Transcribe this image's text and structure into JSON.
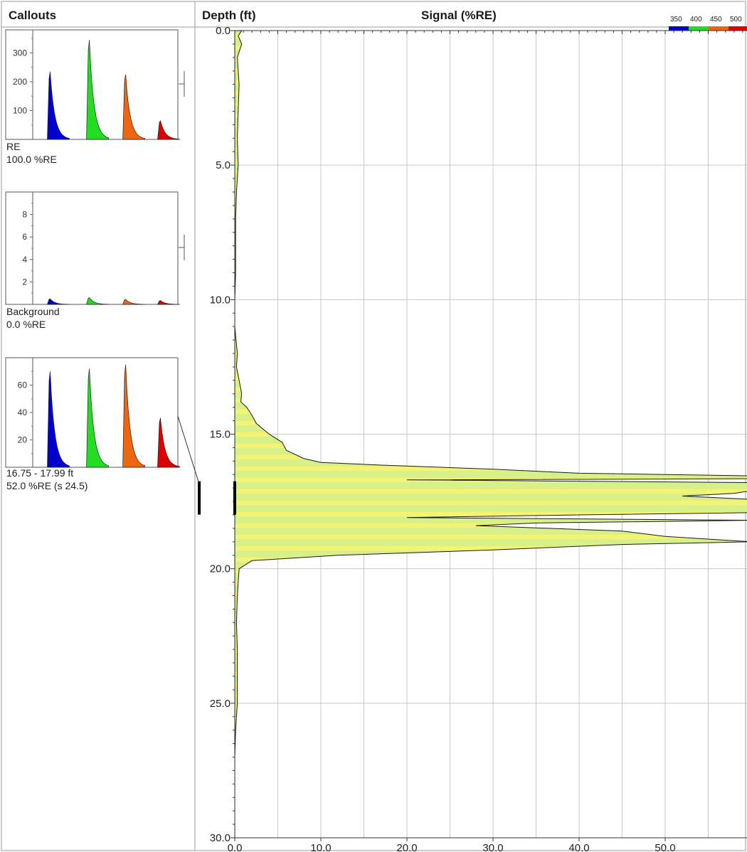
{
  "header": {
    "left_title": "Callouts",
    "depth_title": "Depth (ft)",
    "signal_title": "Signal (%RE)"
  },
  "colors": {
    "wave_350": "#0000cc",
    "wave_400": "#22dd22",
    "wave_450": "#ee6611",
    "wave_500": "#dd0000",
    "log_fill": "#d8f08a",
    "log_fill_stripe": "#f4f472",
    "grid": "#c8c8c8",
    "marker": "#000000"
  },
  "legend": {
    "labels": [
      "350",
      "400",
      "450",
      "500"
    ]
  },
  "callouts": [
    {
      "label_line1": "RE",
      "label_line2": "100.0 %RE",
      "ylim": [
        0,
        380
      ],
      "yticks": [
        100,
        200,
        300
      ],
      "peaks": [
        235,
        345,
        225,
        65
      ]
    },
    {
      "label_line1": "Background",
      "label_line2": "0.0 %RE",
      "ylim": [
        0,
        10
      ],
      "yticks": [
        2,
        4,
        6,
        8
      ],
      "peaks": [
        0.5,
        0.6,
        0.45,
        0.35
      ]
    },
    {
      "label_line1": "16.75 - 17.99 ft",
      "label_line2": "52.0 %RE (s 24.5)",
      "ylim": [
        0,
        80
      ],
      "yticks": [
        20,
        40,
        60
      ],
      "peaks": [
        70,
        72,
        75,
        36
      ]
    }
  ],
  "chart_data": {
    "type": "area",
    "title": "Signal (%RE)",
    "ylabel": "Depth (ft)",
    "xlim": [
      0,
      60
    ],
    "ylim": [
      0,
      30
    ],
    "y_inverted": true,
    "xticks": [
      0,
      10,
      20,
      30,
      40,
      50
    ],
    "xtick_labels": [
      "0.0",
      "10.0",
      "20.0",
      "30.0",
      "40.0",
      "50.0"
    ],
    "yticks": [
      0,
      5,
      10,
      15,
      20,
      25,
      30
    ],
    "ytick_labels": [
      "0.0",
      "5.0",
      "10.0",
      "15.0",
      "20.0",
      "25.0",
      "30.0"
    ],
    "grid": true,
    "highlight_interval": [
      16.75,
      17.99
    ],
    "series": [
      {
        "depth": [
          0.0,
          0.2,
          0.5,
          1.0,
          2.0,
          3.0,
          4.0,
          5.0,
          6.0,
          7.0,
          8.0,
          9.0,
          10.0,
          11.0,
          12.0,
          12.5,
          13.0,
          13.5,
          13.8,
          14.0,
          14.3,
          14.6,
          15.0,
          15.3,
          15.6,
          15.9,
          16.05,
          16.15,
          16.3,
          16.45,
          16.55,
          16.65,
          16.7,
          16.8,
          17.0,
          17.2,
          17.3,
          17.5,
          17.7,
          17.9,
          18.0,
          18.1,
          18.2,
          18.3,
          18.4,
          18.6,
          18.8,
          19.0,
          19.1,
          19.3,
          19.5,
          19.7,
          20.0,
          21.0,
          22.0,
          23.0,
          24.0,
          25.0,
          25.5,
          26.0,
          27.0,
          30.0
        ],
        "signal": [
          0.8,
          0.4,
          0.8,
          0.3,
          0.5,
          0.4,
          0.3,
          0.4,
          0.2,
          0.1,
          0.1,
          0.1,
          0.0,
          0.0,
          0.3,
          0.2,
          0.5,
          0.8,
          0.7,
          1.4,
          2.0,
          2.5,
          4.0,
          5.5,
          6.0,
          8.0,
          10.0,
          17.0,
          30.0,
          40.0,
          60.0,
          65.0,
          20.0,
          60.0,
          62.0,
          58.0,
          52.0,
          65.0,
          66.0,
          64.0,
          40.0,
          20.0,
          60.0,
          35.0,
          28.0,
          45.0,
          50.0,
          60.0,
          45.0,
          30.0,
          12.0,
          2.0,
          0.5,
          0.3,
          0.2,
          0.3,
          0.3,
          0.3,
          0.2,
          0.1,
          0.0,
          0.0
        ]
      }
    ]
  }
}
